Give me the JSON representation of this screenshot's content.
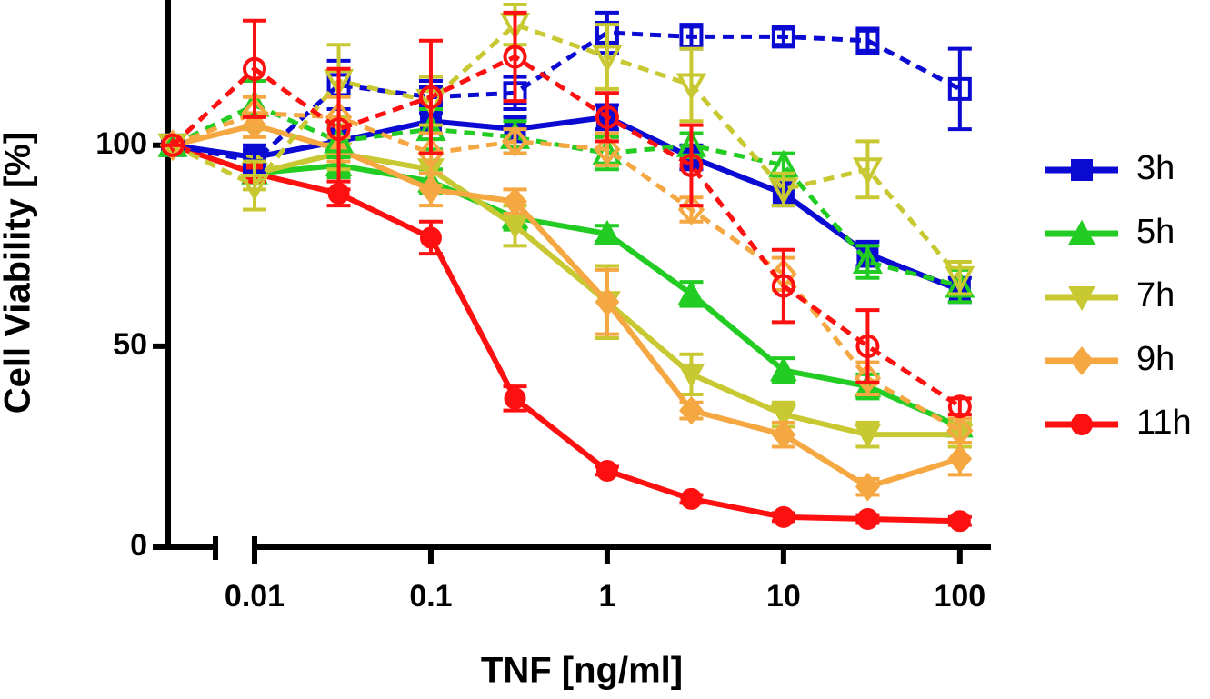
{
  "chart_data": {
    "type": "line",
    "ylabel": "Cell Viability [%]",
    "xlabel": "TNF [ng/ml]",
    "x": [
      0,
      0.01,
      0.03,
      0.1,
      0.3,
      1,
      3,
      10,
      30,
      100
    ],
    "xscale": "log",
    "xlim": [
      0.01,
      150
    ],
    "xticks": [
      0.01,
      0.1,
      1,
      10,
      100
    ],
    "ylim": [
      0,
      135
    ],
    "yticks": [
      0,
      50,
      100
    ],
    "legend": "right",
    "series": [
      {
        "name": "3h",
        "color": "#0a0ad2",
        "marker": "square",
        "dashed": false,
        "values": [
          100,
          97,
          101,
          106,
          104,
          107,
          97,
          88,
          73,
          64
        ],
        "errors": [
          0,
          3,
          3,
          3,
          3,
          3,
          3,
          3,
          3,
          3
        ]
      },
      {
        "name": "5h",
        "color": "#22cc22",
        "marker": "triangle",
        "dashed": false,
        "values": [
          100,
          93,
          95,
          91,
          82,
          78,
          63,
          44,
          40,
          30
        ],
        "errors": [
          0,
          2,
          3,
          3,
          3,
          2,
          3,
          3,
          3,
          2
        ]
      },
      {
        "name": "7h",
        "color": "#c8c832",
        "marker": "triangle-down",
        "dashed": false,
        "values": [
          100,
          93,
          98,
          94,
          80,
          61,
          43,
          33,
          28,
          28
        ],
        "errors": [
          0,
          4,
          4,
          4,
          5,
          9,
          5,
          3,
          3,
          3
        ]
      },
      {
        "name": "9h",
        "color": "#f5a742",
        "marker": "diamond",
        "dashed": false,
        "values": [
          100,
          105,
          99,
          89,
          86,
          61,
          34,
          28,
          15,
          22
        ],
        "errors": [
          0,
          3,
          3,
          4,
          3,
          8,
          2,
          3,
          2,
          4
        ]
      },
      {
        "name": "11h",
        "color": "#ff1010",
        "marker": "circle",
        "dashed": false,
        "values": [
          100,
          93,
          88,
          77,
          37,
          19,
          12,
          7.5,
          7,
          6.5
        ],
        "errors": [
          0,
          2,
          3,
          4,
          3,
          1,
          1,
          1,
          1,
          1
        ]
      },
      {
        "color": "#0a0ad2",
        "marker": "square",
        "dashed": true,
        "values": [
          100,
          96,
          115,
          112,
          113,
          128,
          127,
          127,
          126,
          114
        ],
        "errors": [
          0,
          3,
          6,
          4,
          4,
          5,
          3,
          2,
          3,
          10
        ]
      },
      {
        "color": "#22cc22",
        "marker": "triangle",
        "dashed": true,
        "values": [
          100,
          110,
          101,
          104,
          102,
          98,
          100,
          95,
          71,
          65
        ],
        "errors": [
          0,
          6,
          4,
          5,
          4,
          4,
          3,
          3,
          4,
          4
        ]
      },
      {
        "color": "#c8c832",
        "marker": "triangle-down",
        "dashed": true,
        "values": [
          100,
          90,
          116,
          111,
          130,
          122,
          115,
          89,
          94,
          67
        ],
        "errors": [
          0,
          6,
          9,
          6,
          5,
          8,
          9,
          4,
          7,
          4
        ]
      },
      {
        "color": "#f5a742",
        "marker": "diamond",
        "dashed": true,
        "values": [
          100,
          108,
          107,
          98,
          101,
          99,
          84,
          68,
          42,
          29
        ],
        "errors": [
          0,
          4,
          5,
          5,
          3,
          4,
          3,
          4,
          4,
          3
        ]
      },
      {
        "color": "#ff1010",
        "marker": "circle",
        "dashed": true,
        "values": [
          100,
          119,
          104,
          112,
          122,
          107,
          95,
          65,
          50,
          35
        ],
        "errors": [
          0,
          12,
          15,
          14,
          11,
          6,
          10,
          9,
          9,
          2
        ]
      }
    ]
  }
}
